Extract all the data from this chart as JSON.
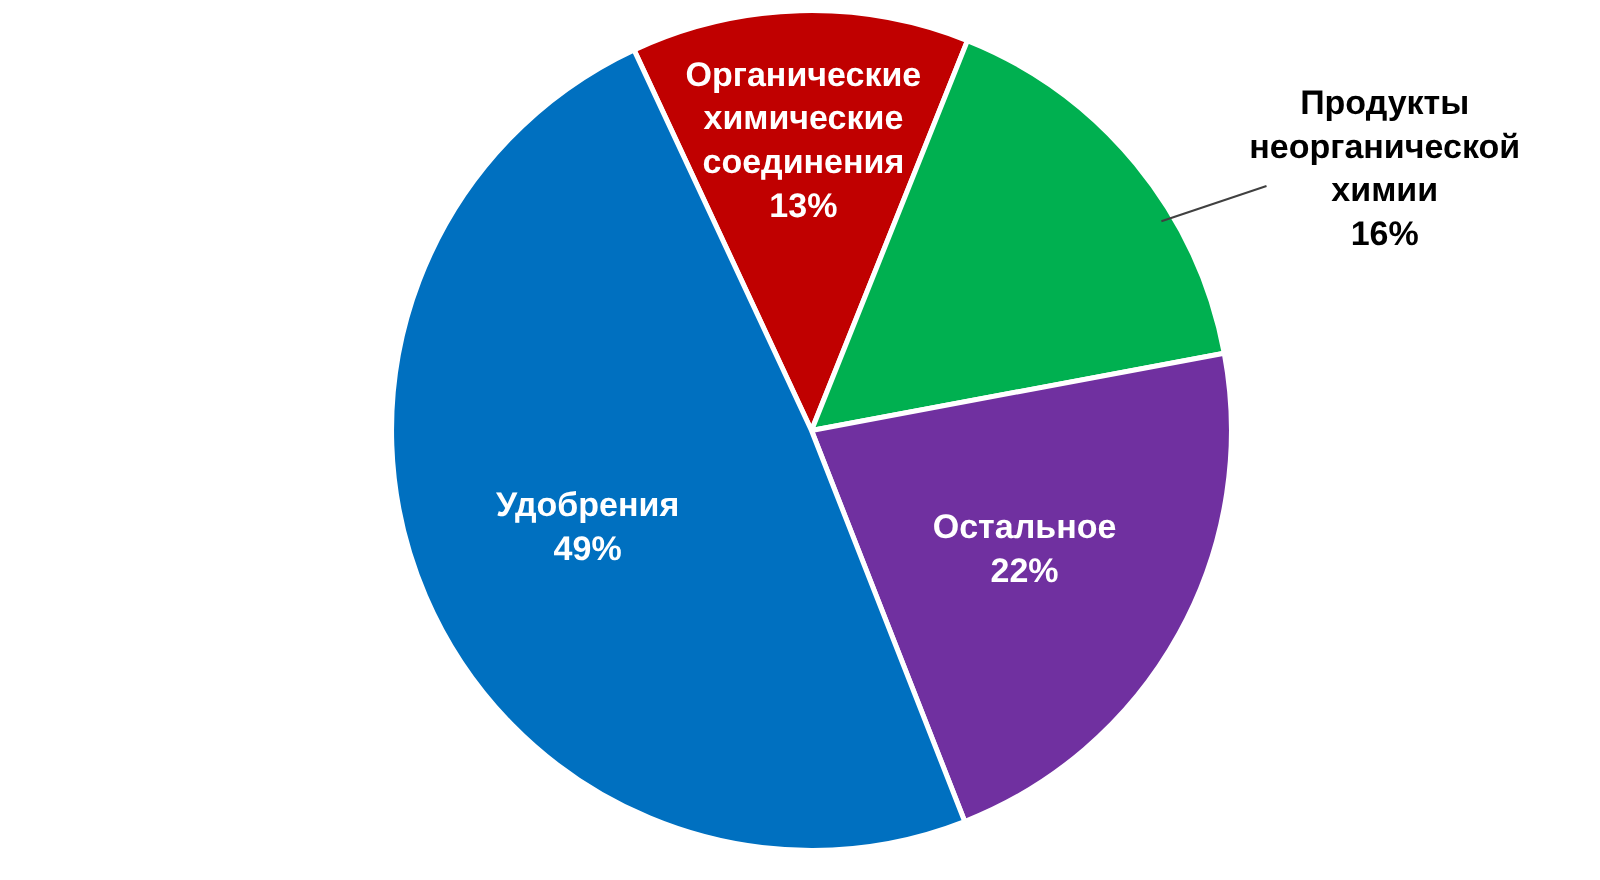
{
  "chart_data": {
    "type": "pie",
    "categories": [
      "Органические химические соединения",
      "Продукты неорганической химии",
      "Остальное",
      "Удобрения"
    ],
    "values": [
      13,
      16,
      22,
      49
    ],
    "value_labels": [
      "13%",
      "16%",
      "22%",
      "49%"
    ],
    "colors": [
      "#c00000",
      "#00b050",
      "#7030a0",
      "#0070c0"
    ]
  }
}
